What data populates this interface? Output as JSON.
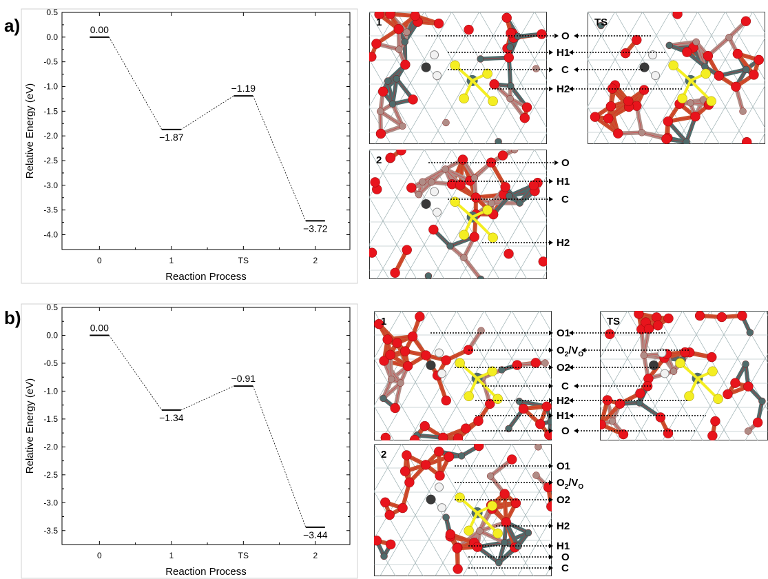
{
  "panels": [
    {
      "letter": "a)",
      "chart_data": {
        "type": "line",
        "categories": [
          "0",
          "1",
          "TS",
          "2"
        ],
        "values": [
          0.0,
          -1.87,
          -1.19,
          -3.72
        ],
        "data_labels": [
          "0.00",
          "−1.87",
          "−1.19",
          "−3.72"
        ],
        "xlabel": "Reaction Process",
        "ylabel": "Relative Energy (eV)",
        "ylim": [
          -4.3,
          0.5
        ],
        "yticks": [
          0.5,
          0.0,
          -0.5,
          -1.0,
          -1.5,
          -2.0,
          -2.5,
          -3.0,
          -3.5,
          -4.0
        ],
        "ytick_labels": [
          "0.5",
          "0.0",
          "-0.5",
          "-1.0",
          "-1.5",
          "-2.0",
          "-2.5",
          "-3.0",
          "-3.5",
          "-4.0"
        ],
        "label_side": [
          "above",
          "below",
          "above",
          "below"
        ],
        "grid": false
      },
      "structures": [
        {
          "label": "1",
          "annotations": [
            "O",
            "H1",
            "C",
            "H2"
          ],
          "arrows": "left"
        },
        {
          "label": "TS",
          "annotations": [],
          "arrows": "right"
        },
        {
          "label": "2",
          "annotations": [
            "O",
            "H1",
            "C",
            "H2"
          ],
          "arrows": "left"
        }
      ]
    },
    {
      "letter": "b)",
      "chart_data": {
        "type": "line",
        "categories": [
          "0",
          "1",
          "TS",
          "2"
        ],
        "values": [
          0.0,
          -1.34,
          -0.91,
          -3.44
        ],
        "data_labels": [
          "0.00",
          "−1.34",
          "−0.91",
          "−3.44"
        ],
        "xlabel": "Reaction Process",
        "ylabel": "Relative Energy (eV)",
        "ylim": [
          -3.75,
          0.5
        ],
        "yticks": [
          0.5,
          0.0,
          -0.5,
          -1.0,
          -1.5,
          -2.0,
          -2.5,
          -3.0,
          -3.5
        ],
        "ytick_labels": [
          "0.5",
          "0.0",
          "-0.5",
          "-1.0",
          "-1.5",
          "-2.0",
          "-2.5",
          "-3.0",
          "-3.5"
        ],
        "label_side": [
          "above",
          "below",
          "above",
          "below"
        ],
        "grid": false
      },
      "structures": [
        {
          "label": "1",
          "annotations": [
            "O1",
            "O2/VO",
            "O2",
            "C",
            "H2",
            "H1",
            "O"
          ],
          "arrows": "left"
        },
        {
          "label": "TS",
          "annotations": [],
          "arrows": "right"
        },
        {
          "label": "2",
          "annotations": [
            "O1",
            "O2/VO",
            "O2",
            "H2",
            "H1",
            "O",
            "C"
          ],
          "arrows": "left"
        }
      ]
    }
  ],
  "colors": {
    "oxygen": "#e8141c",
    "metal_grey": "#4f6b6b",
    "metal_pink": "#b08c86",
    "sulfur": "#f4ee22",
    "hydrogen": "#f2f2f2",
    "carbon": "#3a3a3a",
    "lattice": "#9aaeb0"
  }
}
